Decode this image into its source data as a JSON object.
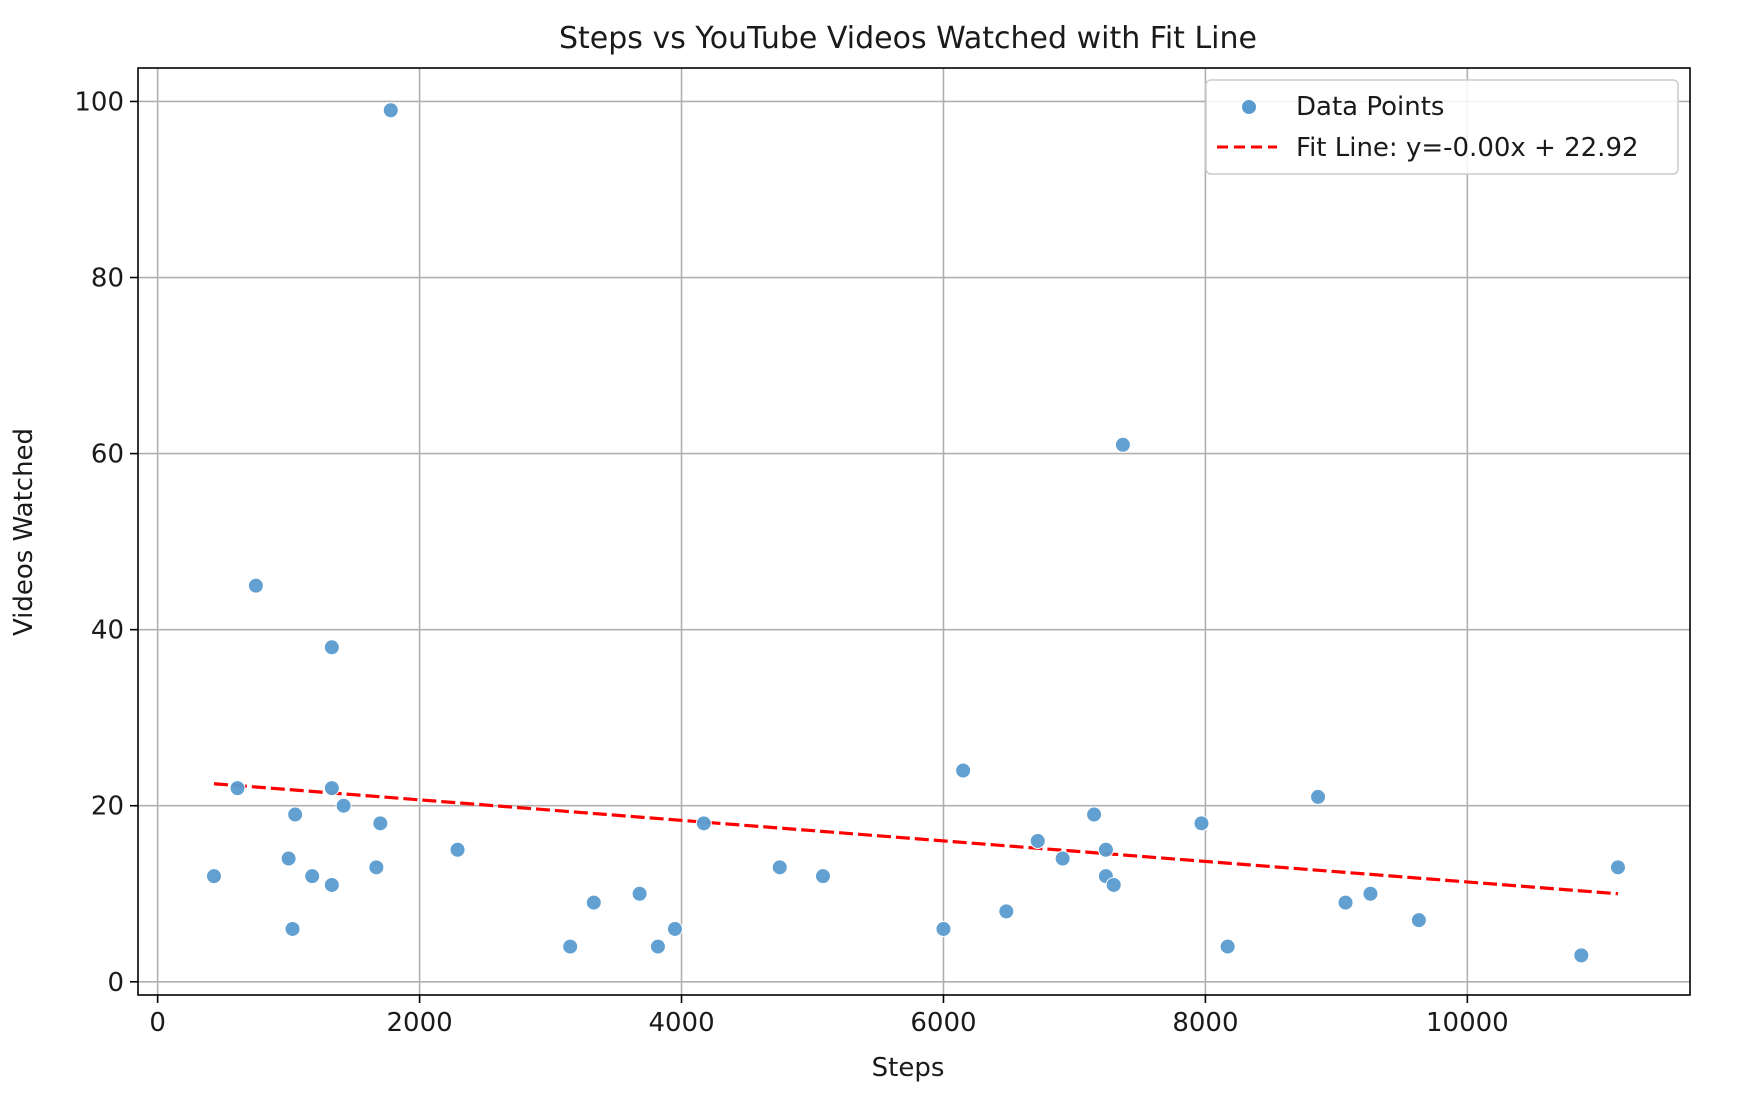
{
  "chart_data": {
    "type": "scatter",
    "title": "Steps vs YouTube Videos Watched with Fit Line",
    "xlabel": "Steps",
    "ylabel": "Videos Watched",
    "xlim": [
      -150,
      11700
    ],
    "ylim": [
      -1.5,
      103.8
    ],
    "xticks": [
      0,
      2000,
      4000,
      6000,
      8000,
      10000
    ],
    "yticks": [
      0,
      20,
      40,
      60,
      80,
      100
    ],
    "grid": true,
    "legend_position": "top-right",
    "series": [
      {
        "name": "Data Points",
        "type": "scatter",
        "color": "#5a9bcf",
        "points": [
          {
            "x": 430,
            "y": 12
          },
          {
            "x": 610,
            "y": 22
          },
          {
            "x": 750,
            "y": 45
          },
          {
            "x": 1000,
            "y": 14
          },
          {
            "x": 1030,
            "y": 6
          },
          {
            "x": 1050,
            "y": 19
          },
          {
            "x": 1180,
            "y": 12
          },
          {
            "x": 1330,
            "y": 38
          },
          {
            "x": 1330,
            "y": 22
          },
          {
            "x": 1330,
            "y": 11
          },
          {
            "x": 1420,
            "y": 20
          },
          {
            "x": 1670,
            "y": 13
          },
          {
            "x": 1700,
            "y": 18
          },
          {
            "x": 1780,
            "y": 99
          },
          {
            "x": 2290,
            "y": 15
          },
          {
            "x": 3150,
            "y": 4
          },
          {
            "x": 3330,
            "y": 9
          },
          {
            "x": 3680,
            "y": 10
          },
          {
            "x": 3820,
            "y": 4
          },
          {
            "x": 3950,
            "y": 6
          },
          {
            "x": 4170,
            "y": 18
          },
          {
            "x": 4750,
            "y": 13
          },
          {
            "x": 5080,
            "y": 12
          },
          {
            "x": 6000,
            "y": 6
          },
          {
            "x": 6150,
            "y": 24
          },
          {
            "x": 6480,
            "y": 8
          },
          {
            "x": 6720,
            "y": 16
          },
          {
            "x": 6910,
            "y": 14
          },
          {
            "x": 7150,
            "y": 19
          },
          {
            "x": 7240,
            "y": 15
          },
          {
            "x": 7240,
            "y": 12
          },
          {
            "x": 7300,
            "y": 11
          },
          {
            "x": 7370,
            "y": 61
          },
          {
            "x": 7970,
            "y": 18
          },
          {
            "x": 8170,
            "y": 4
          },
          {
            "x": 8860,
            "y": 21
          },
          {
            "x": 9070,
            "y": 9
          },
          {
            "x": 9260,
            "y": 10
          },
          {
            "x": 9630,
            "y": 7
          },
          {
            "x": 10870,
            "y": 3
          },
          {
            "x": 11150,
            "y": 13
          }
        ]
      },
      {
        "name": "Fit Line: y=-0.00x + 22.92",
        "type": "line",
        "style": "dashed",
        "color": "#ff0000",
        "points": [
          {
            "x": 430,
            "y": 22.5
          },
          {
            "x": 11150,
            "y": 10.0
          }
        ]
      }
    ]
  }
}
